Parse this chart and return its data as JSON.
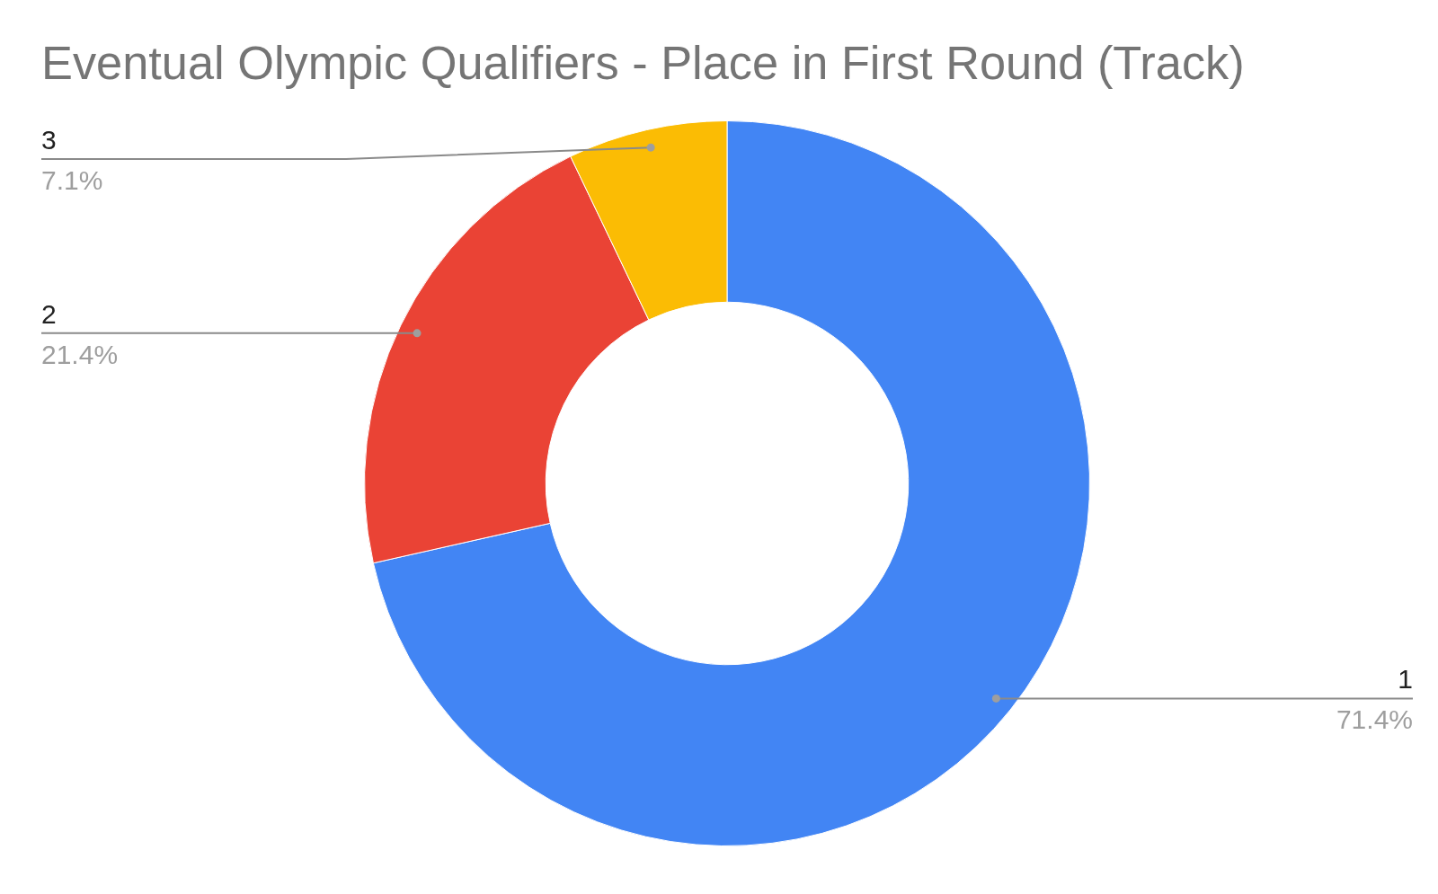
{
  "chart_data": {
    "type": "donut",
    "title": "Eventual Olympic Qualifiers - Place in First Round (Track)",
    "categories": [
      "1",
      "2",
      "3"
    ],
    "values": [
      71.4,
      21.4,
      7.1
    ],
    "colors": [
      "#4285f4",
      "#ea4335",
      "#fbbc04"
    ],
    "value_labels": [
      "71.4%",
      "21.4%",
      "7.1%"
    ]
  }
}
